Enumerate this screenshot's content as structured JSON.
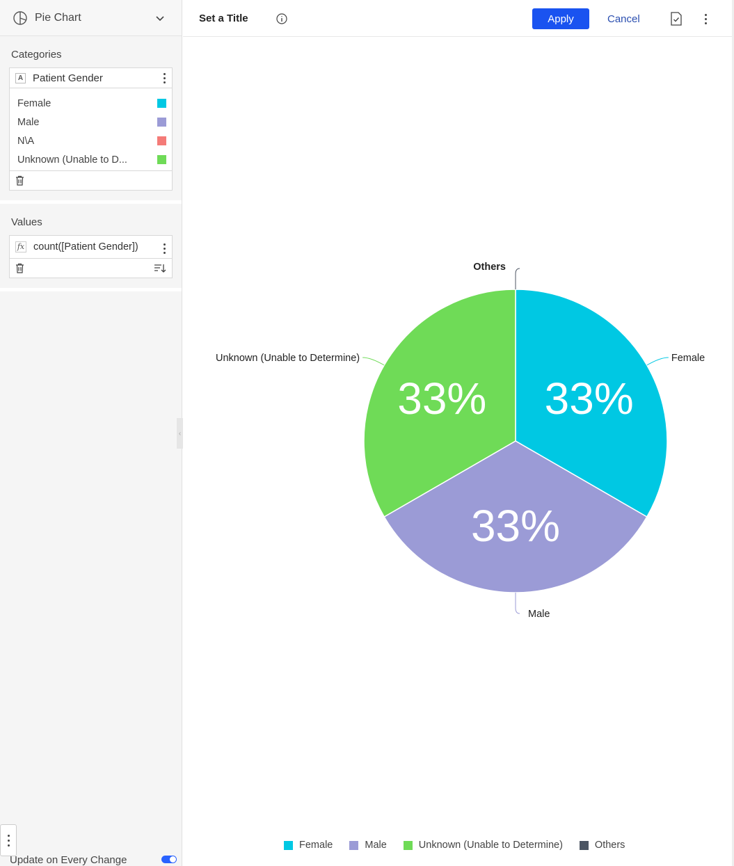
{
  "sidebar": {
    "chart_type_label": "Pie Chart",
    "categories_title": "Categories",
    "category_field": "Patient Gender",
    "category_field_type": "A",
    "category_items": [
      {
        "label": "Female",
        "color": "#00c8e3"
      },
      {
        "label": "Male",
        "color": "#9b9bd6"
      },
      {
        "label": "N\\A",
        "color": "#f47b78"
      },
      {
        "label": "Unknown (Unable to D...",
        "color": "#6fdb57"
      }
    ],
    "values_title": "Values",
    "value_field": "count([Patient Gender])",
    "value_field_type": "fx",
    "update_label": "Update on Every Change"
  },
  "header": {
    "title": "Set a Title",
    "apply_label": "Apply",
    "cancel_label": "Cancel"
  },
  "chart_data": {
    "type": "pie",
    "slices": [
      {
        "name": "Female",
        "value": 33.33,
        "label": "33%",
        "color": "#00c8e3"
      },
      {
        "name": "Male",
        "value": 33.33,
        "label": "33%",
        "color": "#9b9bd6"
      },
      {
        "name": "Unknown (Unable to Determine)",
        "value": 33.33,
        "label": "33%",
        "color": "#6fdb57"
      },
      {
        "name": "Others",
        "value": 0,
        "label": "",
        "color": "#4c5563"
      }
    ],
    "legend_position": "bottom"
  }
}
